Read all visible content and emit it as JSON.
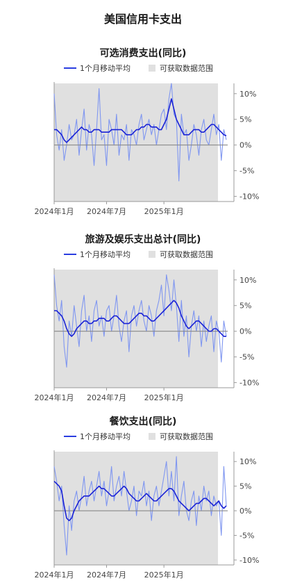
{
  "page_title": "美国信用卡支出",
  "legend_line": "1个月移动平均",
  "legend_shade": "可获取数据范围",
  "colors": {
    "daily": "#7f96f0",
    "ma": "#1a22d6",
    "shade": "#e0e0e0",
    "zero": "#888888"
  },
  "chart_data": [
    {
      "type": "line",
      "title": "可选消费支出(同比)",
      "x_ticks": [
        "2024年1月",
        "2024年7月",
        "2025年1月"
      ],
      "y_ticks": [
        "10%",
        "5%",
        "0%",
        "-5%",
        "-10%"
      ],
      "ylim": [
        -11,
        12
      ],
      "series": [
        {
          "name": "1个月移动平均",
          "values": [
            3,
            3,
            2.5,
            2,
            1,
            0.5,
            1,
            1.5,
            2,
            2.5,
            3,
            3.5,
            3,
            3,
            2.5,
            2.5,
            3,
            3,
            3,
            2.5,
            2.5,
            2.5,
            2.5,
            3,
            3,
            3,
            3,
            3,
            2.5,
            2,
            2,
            2,
            2.5,
            3,
            3,
            3.5,
            3.5,
            4,
            4,
            3.5,
            3.5,
            3.5,
            3,
            3,
            4,
            5,
            7,
            9,
            7,
            5,
            4,
            3,
            2,
            2,
            2,
            2.5,
            3,
            3,
            3,
            2.5,
            2.5,
            3,
            3.5,
            4,
            4,
            3.5,
            3,
            2.5,
            2,
            1.8
          ]
        },
        {
          "name": "daily",
          "values": [
            10,
            2,
            -1,
            3,
            -3,
            0,
            4,
            1,
            2,
            5,
            -2,
            3,
            7,
            -1,
            4,
            2,
            -4,
            3,
            11,
            1,
            2,
            -4,
            5,
            3,
            0,
            6,
            -2,
            2,
            1,
            4,
            -3,
            3,
            2,
            0,
            4,
            6,
            1,
            3,
            5,
            2,
            4,
            0,
            3,
            6,
            7,
            3,
            9,
            12,
            6,
            5,
            -7,
            6,
            2,
            3,
            -3,
            0,
            4,
            2,
            -2,
            3,
            5,
            1,
            0,
            3,
            6,
            2,
            4,
            -3,
            3,
            1
          ]
        }
      ]
    },
    {
      "type": "line",
      "title": "旅游及娱乐支出总计(同比)",
      "x_ticks": [
        "2024年1月",
        "2024年7月",
        "2025年1月"
      ],
      "y_ticks": [
        "10%",
        "5%",
        "0%",
        "-5%",
        "-10%"
      ],
      "ylim": [
        -11,
        12
      ],
      "series": [
        {
          "name": "1个月移动平均",
          "values": [
            4,
            4,
            3.5,
            3,
            2,
            0.5,
            -0.5,
            -1,
            -0.5,
            0.5,
            1,
            1.5,
            2,
            2,
            1.5,
            1.5,
            2,
            2,
            2.5,
            2.5,
            2.5,
            2,
            2,
            2.5,
            3,
            3,
            2.5,
            2,
            1.5,
            1.5,
            1.5,
            2,
            2.5,
            3,
            3.5,
            3.5,
            3,
            3,
            2.5,
            2,
            2,
            2.5,
            3,
            3.5,
            4,
            4.5,
            5,
            5.5,
            6,
            5.5,
            4.5,
            3,
            2,
            1,
            0.5,
            1,
            1.5,
            2,
            2,
            1.5,
            1,
            0.5,
            0,
            0,
            0.5,
            0.5,
            0,
            -0.5,
            -1,
            -1
          ]
        },
        {
          "name": "daily",
          "values": [
            11,
            5,
            2,
            6,
            -3,
            -7,
            2,
            -1,
            5,
            1,
            -3,
            4,
            7,
            0,
            3,
            -2,
            4,
            6,
            1,
            3,
            -1,
            4,
            5,
            0,
            3,
            7,
            1,
            -2,
            2,
            4,
            -4,
            3,
            5,
            1,
            4,
            6,
            2,
            0,
            5,
            3,
            -1,
            4,
            6,
            9,
            3,
            11,
            8,
            4,
            10,
            5,
            -2,
            6,
            -1,
            3,
            -5,
            1,
            4,
            0,
            3,
            -3,
            2,
            -2,
            1,
            3,
            -4,
            2,
            0,
            -6,
            2,
            -1
          ]
        }
      ]
    },
    {
      "type": "line",
      "title": "餐饮支出(同比)",
      "x_ticks": [
        "2024年1月",
        "2024年7月",
        "2025年1月"
      ],
      "y_ticks": [
        "10%",
        "5%",
        "0%",
        "-5%",
        "-10%"
      ],
      "ylim": [
        -11,
        12
      ],
      "series": [
        {
          "name": "1个月移动平均",
          "values": [
            6,
            5.5,
            5,
            4,
            1,
            -1.5,
            -2,
            -1.5,
            0,
            1,
            2,
            2.5,
            3,
            3,
            3,
            3.5,
            4,
            4.5,
            5,
            4.5,
            4.5,
            4,
            3.5,
            3,
            3,
            3.5,
            4,
            4.5,
            5,
            4.5,
            3.5,
            3,
            2.5,
            2,
            2,
            2.5,
            3,
            3.5,
            3,
            2.5,
            2,
            2,
            2.5,
            3,
            3.5,
            4,
            4.5,
            4.5,
            4,
            3,
            2,
            1.5,
            1,
            0.5,
            0,
            0.5,
            1,
            1.5,
            1.5,
            2,
            2.5,
            2.5,
            2,
            1.5,
            1,
            1.5,
            2,
            1,
            0.5,
            1
          ]
        },
        {
          "name": "daily",
          "values": [
            9,
            6,
            2,
            5,
            -3,
            -9,
            1,
            -4,
            2,
            4,
            0,
            3,
            7,
            1,
            4,
            6,
            2,
            5,
            8,
            3,
            6,
            1,
            4,
            9,
            2,
            5,
            7,
            3,
            8,
            4,
            0,
            2,
            5,
            -1,
            4,
            3,
            6,
            1,
            4,
            -2,
            3,
            5,
            1,
            4,
            7,
            10,
            3,
            8,
            2,
            11,
            -1,
            3,
            6,
            0,
            -2,
            2,
            4,
            -3,
            3,
            0,
            5,
            2,
            4,
            -1,
            3,
            1,
            2,
            -5,
            9,
            1
          ]
        }
      ]
    }
  ]
}
